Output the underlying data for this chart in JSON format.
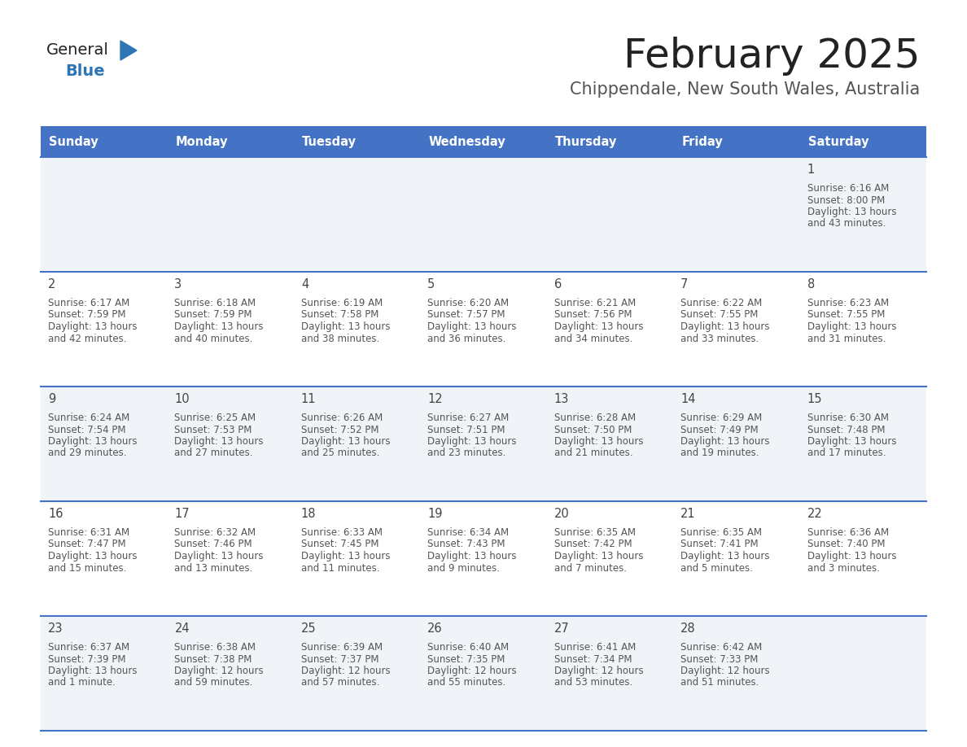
{
  "title": "February 2025",
  "subtitle": "Chippendale, New South Wales, Australia",
  "days_of_week": [
    "Sunday",
    "Monday",
    "Tuesday",
    "Wednesday",
    "Thursday",
    "Friday",
    "Saturday"
  ],
  "header_bg": "#4472C4",
  "header_text": "#FFFFFF",
  "cell_bg_light": "#F0F4F8",
  "cell_bg_white": "#FFFFFF",
  "divider_color": "#4472C4",
  "text_color": "#555555",
  "day_num_color": "#444444",
  "title_color": "#222222",
  "subtitle_color": "#555555",
  "logo_general_color": "#222222",
  "logo_blue_color": "#2E75B6",
  "logo_triangle_color": "#2E75B6",
  "calendar": [
    [
      {
        "day": null
      },
      {
        "day": null
      },
      {
        "day": null
      },
      {
        "day": null
      },
      {
        "day": null
      },
      {
        "day": null
      },
      {
        "day": 1,
        "sunrise": "6:16 AM",
        "sunset": "8:00 PM",
        "daylight": "13 hours",
        "daylight2": "and 43 minutes."
      }
    ],
    [
      {
        "day": 2,
        "sunrise": "6:17 AM",
        "sunset": "7:59 PM",
        "daylight": "13 hours",
        "daylight2": "and 42 minutes."
      },
      {
        "day": 3,
        "sunrise": "6:18 AM",
        "sunset": "7:59 PM",
        "daylight": "13 hours",
        "daylight2": "and 40 minutes."
      },
      {
        "day": 4,
        "sunrise": "6:19 AM",
        "sunset": "7:58 PM",
        "daylight": "13 hours",
        "daylight2": "and 38 minutes."
      },
      {
        "day": 5,
        "sunrise": "6:20 AM",
        "sunset": "7:57 PM",
        "daylight": "13 hours",
        "daylight2": "and 36 minutes."
      },
      {
        "day": 6,
        "sunrise": "6:21 AM",
        "sunset": "7:56 PM",
        "daylight": "13 hours",
        "daylight2": "and 34 minutes."
      },
      {
        "day": 7,
        "sunrise": "6:22 AM",
        "sunset": "7:55 PM",
        "daylight": "13 hours",
        "daylight2": "and 33 minutes."
      },
      {
        "day": 8,
        "sunrise": "6:23 AM",
        "sunset": "7:55 PM",
        "daylight": "13 hours",
        "daylight2": "and 31 minutes."
      }
    ],
    [
      {
        "day": 9,
        "sunrise": "6:24 AM",
        "sunset": "7:54 PM",
        "daylight": "13 hours",
        "daylight2": "and 29 minutes."
      },
      {
        "day": 10,
        "sunrise": "6:25 AM",
        "sunset": "7:53 PM",
        "daylight": "13 hours",
        "daylight2": "and 27 minutes."
      },
      {
        "day": 11,
        "sunrise": "6:26 AM",
        "sunset": "7:52 PM",
        "daylight": "13 hours",
        "daylight2": "and 25 minutes."
      },
      {
        "day": 12,
        "sunrise": "6:27 AM",
        "sunset": "7:51 PM",
        "daylight": "13 hours",
        "daylight2": "and 23 minutes."
      },
      {
        "day": 13,
        "sunrise": "6:28 AM",
        "sunset": "7:50 PM",
        "daylight": "13 hours",
        "daylight2": "and 21 minutes."
      },
      {
        "day": 14,
        "sunrise": "6:29 AM",
        "sunset": "7:49 PM",
        "daylight": "13 hours",
        "daylight2": "and 19 minutes."
      },
      {
        "day": 15,
        "sunrise": "6:30 AM",
        "sunset": "7:48 PM",
        "daylight": "13 hours",
        "daylight2": "and 17 minutes."
      }
    ],
    [
      {
        "day": 16,
        "sunrise": "6:31 AM",
        "sunset": "7:47 PM",
        "daylight": "13 hours",
        "daylight2": "and 15 minutes."
      },
      {
        "day": 17,
        "sunrise": "6:32 AM",
        "sunset": "7:46 PM",
        "daylight": "13 hours",
        "daylight2": "and 13 minutes."
      },
      {
        "day": 18,
        "sunrise": "6:33 AM",
        "sunset": "7:45 PM",
        "daylight": "13 hours",
        "daylight2": "and 11 minutes."
      },
      {
        "day": 19,
        "sunrise": "6:34 AM",
        "sunset": "7:43 PM",
        "daylight": "13 hours",
        "daylight2": "and 9 minutes."
      },
      {
        "day": 20,
        "sunrise": "6:35 AM",
        "sunset": "7:42 PM",
        "daylight": "13 hours",
        "daylight2": "and 7 minutes."
      },
      {
        "day": 21,
        "sunrise": "6:35 AM",
        "sunset": "7:41 PM",
        "daylight": "13 hours",
        "daylight2": "and 5 minutes."
      },
      {
        "day": 22,
        "sunrise": "6:36 AM",
        "sunset": "7:40 PM",
        "daylight": "13 hours",
        "daylight2": "and 3 minutes."
      }
    ],
    [
      {
        "day": 23,
        "sunrise": "6:37 AM",
        "sunset": "7:39 PM",
        "daylight": "13 hours",
        "daylight2": "and 1 minute."
      },
      {
        "day": 24,
        "sunrise": "6:38 AM",
        "sunset": "7:38 PM",
        "daylight": "12 hours",
        "daylight2": "and 59 minutes."
      },
      {
        "day": 25,
        "sunrise": "6:39 AM",
        "sunset": "7:37 PM",
        "daylight": "12 hours",
        "daylight2": "and 57 minutes."
      },
      {
        "day": 26,
        "sunrise": "6:40 AM",
        "sunset": "7:35 PM",
        "daylight": "12 hours",
        "daylight2": "and 55 minutes."
      },
      {
        "day": 27,
        "sunrise": "6:41 AM",
        "sunset": "7:34 PM",
        "daylight": "12 hours",
        "daylight2": "and 53 minutes."
      },
      {
        "day": 28,
        "sunrise": "6:42 AM",
        "sunset": "7:33 PM",
        "daylight": "12 hours",
        "daylight2": "and 51 minutes."
      },
      {
        "day": null
      }
    ]
  ]
}
